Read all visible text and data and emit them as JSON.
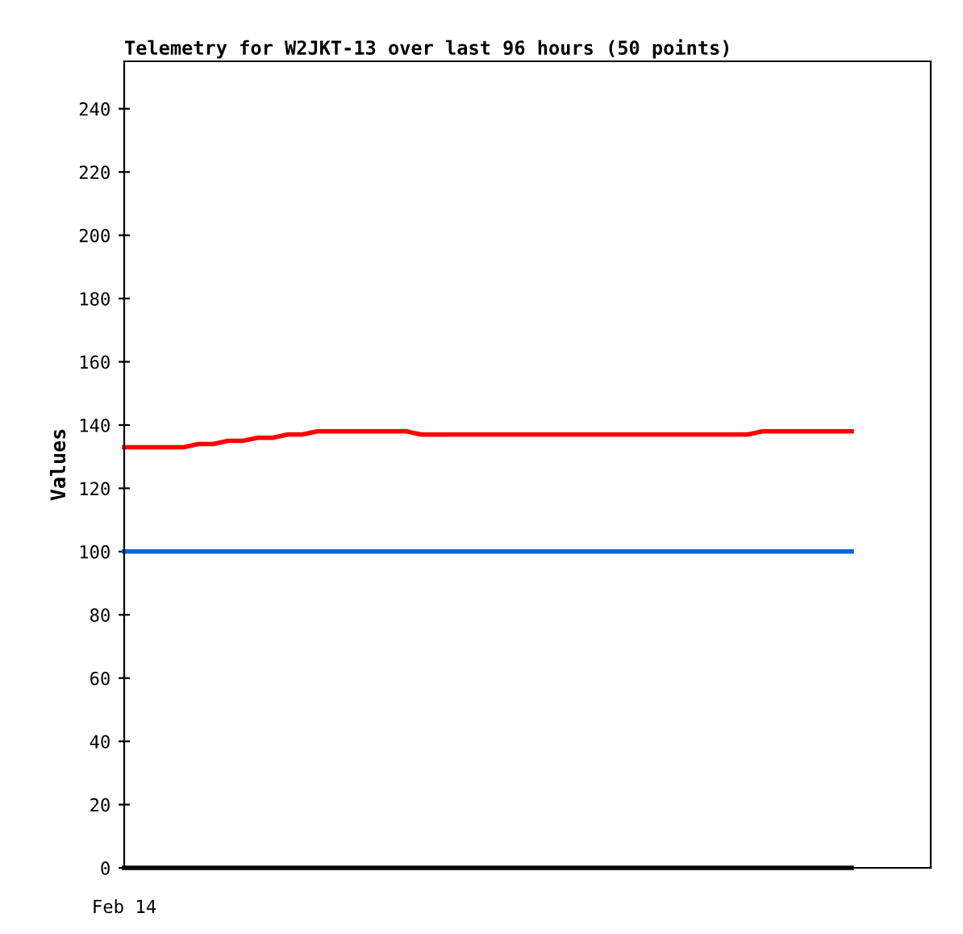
{
  "chart_data": {
    "type": "line",
    "title": "Telemetry for W2JKT-13 over last 96 hours (50 points)",
    "ylabel": "Values",
    "categories": [
      null,
      null,
      null,
      null,
      null,
      null,
      null,
      null,
      null,
      null,
      null,
      null,
      null,
      null,
      null,
      null,
      null,
      null,
      null,
      null,
      null,
      null,
      null,
      null,
      null,
      null,
      null,
      null,
      null,
      null,
      null,
      null,
      null,
      null,
      null,
      null,
      null,
      null,
      null,
      null,
      null,
      null,
      null,
      null,
      null,
      null,
      null,
      null,
      null,
      null
    ],
    "series": [
      {
        "color": "#ff0000",
        "values": [
          133,
          133,
          133,
          133,
          133,
          134,
          134,
          135,
          135,
          136,
          136,
          137,
          137,
          138,
          138,
          138,
          138,
          138,
          138,
          138,
          137,
          137,
          137,
          137,
          137,
          137,
          137,
          137,
          137,
          137,
          137,
          137,
          137,
          137,
          137,
          137,
          137,
          137,
          137,
          137,
          137,
          137,
          137,
          138,
          138,
          138,
          138,
          138,
          138,
          138
        ]
      },
      {
        "color": "#0066cc",
        "values": [
          100,
          100,
          100,
          100,
          100,
          100,
          100,
          100,
          100,
          100,
          100,
          100,
          100,
          100,
          100,
          100,
          100,
          100,
          100,
          100,
          100,
          100,
          100,
          100,
          100,
          100,
          100,
          100,
          100,
          100,
          100,
          100,
          100,
          100,
          100,
          100,
          100,
          100,
          100,
          100,
          100,
          100,
          100,
          100,
          100,
          100,
          100,
          100,
          100,
          100
        ]
      },
      {
        "color": "#000000",
        "values": [
          0,
          0,
          0,
          0,
          0,
          0,
          0,
          0,
          0,
          0,
          0,
          0,
          0,
          0,
          0,
          0,
          0,
          0,
          0,
          0,
          0,
          0,
          0,
          0,
          0,
          0,
          0,
          0,
          0,
          0,
          0,
          0,
          0,
          0,
          0,
          0,
          0,
          0,
          0,
          0,
          0,
          0,
          0,
          0,
          0,
          0,
          0,
          0,
          0,
          0
        ]
      }
    ],
    "annotations": [
      "Feb 14"
    ],
    "ylim": [
      0,
      255
    ],
    "yticks": [
      0,
      20,
      40,
      60,
      80,
      100,
      120,
      140,
      160,
      180,
      200,
      220,
      240
    ],
    "grid": false,
    "marker": "none",
    "line_style": "solid"
  }
}
